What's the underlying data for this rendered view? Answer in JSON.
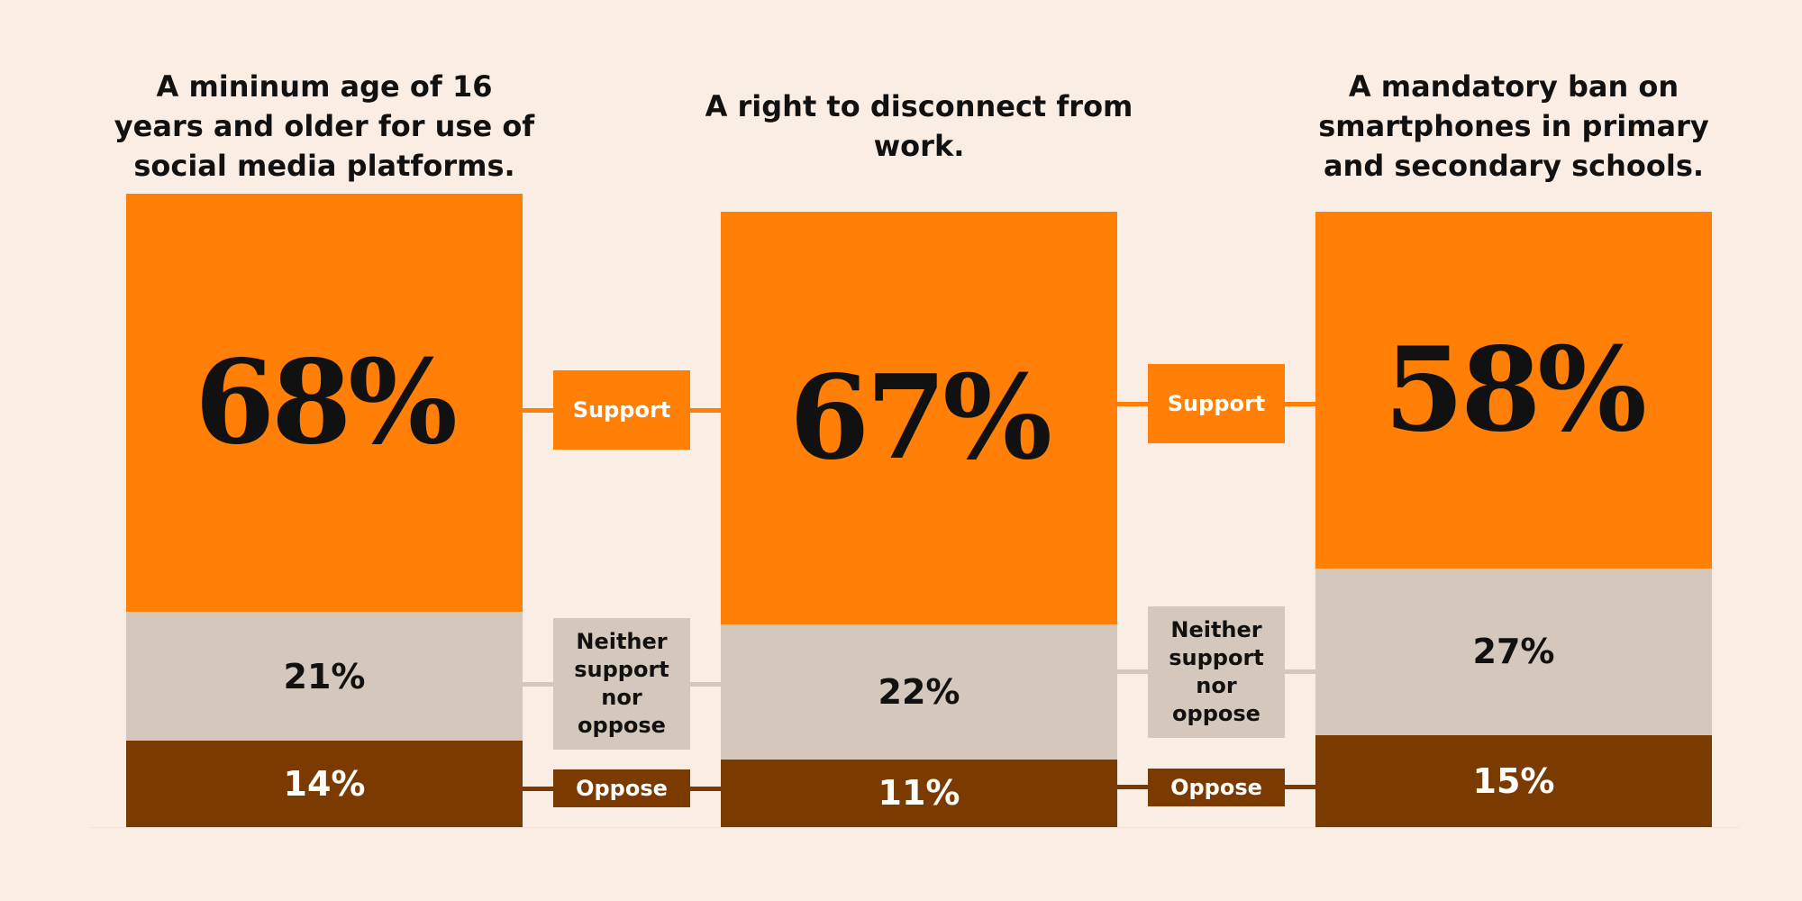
{
  "chart_data": {
    "type": "stacked-bar",
    "categories": [
      "A mininum age of 16 years and older for use of social media platforms.",
      "A right to disconnect from work.",
      "A mandatory ban on smartphones in primary and secondary schools."
    ],
    "series": [
      {
        "name": "Support",
        "values": [
          68,
          67,
          58
        ],
        "color": "#ff7f07",
        "labels": [
          "68%",
          "67%",
          "58%"
        ]
      },
      {
        "name": "Neither support nor oppose",
        "values": [
          21,
          22,
          27
        ],
        "color": "#d4c8bc",
        "labels": [
          "21%",
          "22%",
          "27%"
        ]
      },
      {
        "name": "Oppose",
        "values": [
          14,
          11,
          15
        ],
        "color": "#7a3a00",
        "labels": [
          "14%",
          "11%",
          "15%"
        ]
      }
    ],
    "legend_labels": [
      "Support",
      "Neither support nor oppose",
      "Oppose"
    ]
  },
  "colors": {
    "background": "#faeee4",
    "support": "#ff7f07",
    "neither": "#d4c8bc",
    "oppose": "#7a3a00"
  }
}
